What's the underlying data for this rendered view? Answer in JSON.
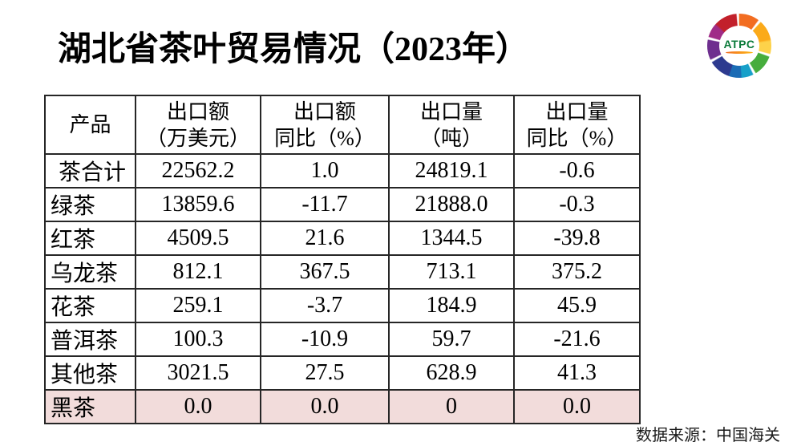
{
  "title": "湖北省茶叶贸易情况（2023年）",
  "logo": {
    "text": "ATPC"
  },
  "table": {
    "headers": [
      {
        "top": "产品",
        "bottom": ""
      },
      {
        "top": "出口额",
        "bottom": "（万美元）"
      },
      {
        "top": "出口额",
        "bottom": "同比（%）"
      },
      {
        "top": "出口量",
        "bottom": "（吨）"
      },
      {
        "top": "出口量",
        "bottom": "同比（%）"
      }
    ],
    "rows": [
      [
        "茶合计",
        "22562.2",
        "1.0",
        "24819.1",
        "-0.6"
      ],
      [
        "绿茶",
        "13859.6",
        "-11.7",
        "21888.0",
        "-0.3"
      ],
      [
        "红茶",
        "4509.5",
        "21.6",
        "1344.5",
        "-39.8"
      ],
      [
        "乌龙茶",
        "812.1",
        "367.5",
        "713.1",
        "375.2"
      ],
      [
        "花茶",
        "259.1",
        "-3.7",
        "184.9",
        "45.9"
      ],
      [
        "普洱茶",
        "100.3",
        "-10.9",
        "59.7",
        "-21.6"
      ],
      [
        "其他茶",
        "3021.5",
        "27.5",
        "628.9",
        "41.3"
      ],
      [
        "黑茶",
        "0.0",
        "0.0",
        "0",
        "0.0"
      ]
    ]
  },
  "source": "数据来源：中国海关",
  "colors": {
    "highlight_row": "#f2dcdb",
    "border": "#262626",
    "logo_text": "#0c7b3b"
  },
  "chart_data": {
    "type": "table",
    "title": "湖北省茶叶贸易情况（2023年）",
    "columns": [
      "产品",
      "出口额（万美元）",
      "出口额同比（%）",
      "出口量（吨）",
      "出口量同比（%）"
    ],
    "rows": [
      [
        "茶合计",
        22562.2,
        1.0,
        24819.1,
        -0.6
      ],
      [
        "绿茶",
        13859.6,
        -11.7,
        21888.0,
        -0.3
      ],
      [
        "红茶",
        4509.5,
        21.6,
        1344.5,
        -39.8
      ],
      [
        "乌龙茶",
        812.1,
        367.5,
        713.1,
        375.2
      ],
      [
        "花茶",
        259.1,
        -3.7,
        184.9,
        45.9
      ],
      [
        "普洱茶",
        100.3,
        -10.9,
        59.7,
        -21.6
      ],
      [
        "其他茶",
        3021.5,
        27.5,
        628.9,
        41.3
      ],
      [
        "黑茶",
        0.0,
        0.0,
        0,
        0.0
      ]
    ],
    "highlighted_row": "黑茶",
    "source": "数据来源：中国海关"
  }
}
